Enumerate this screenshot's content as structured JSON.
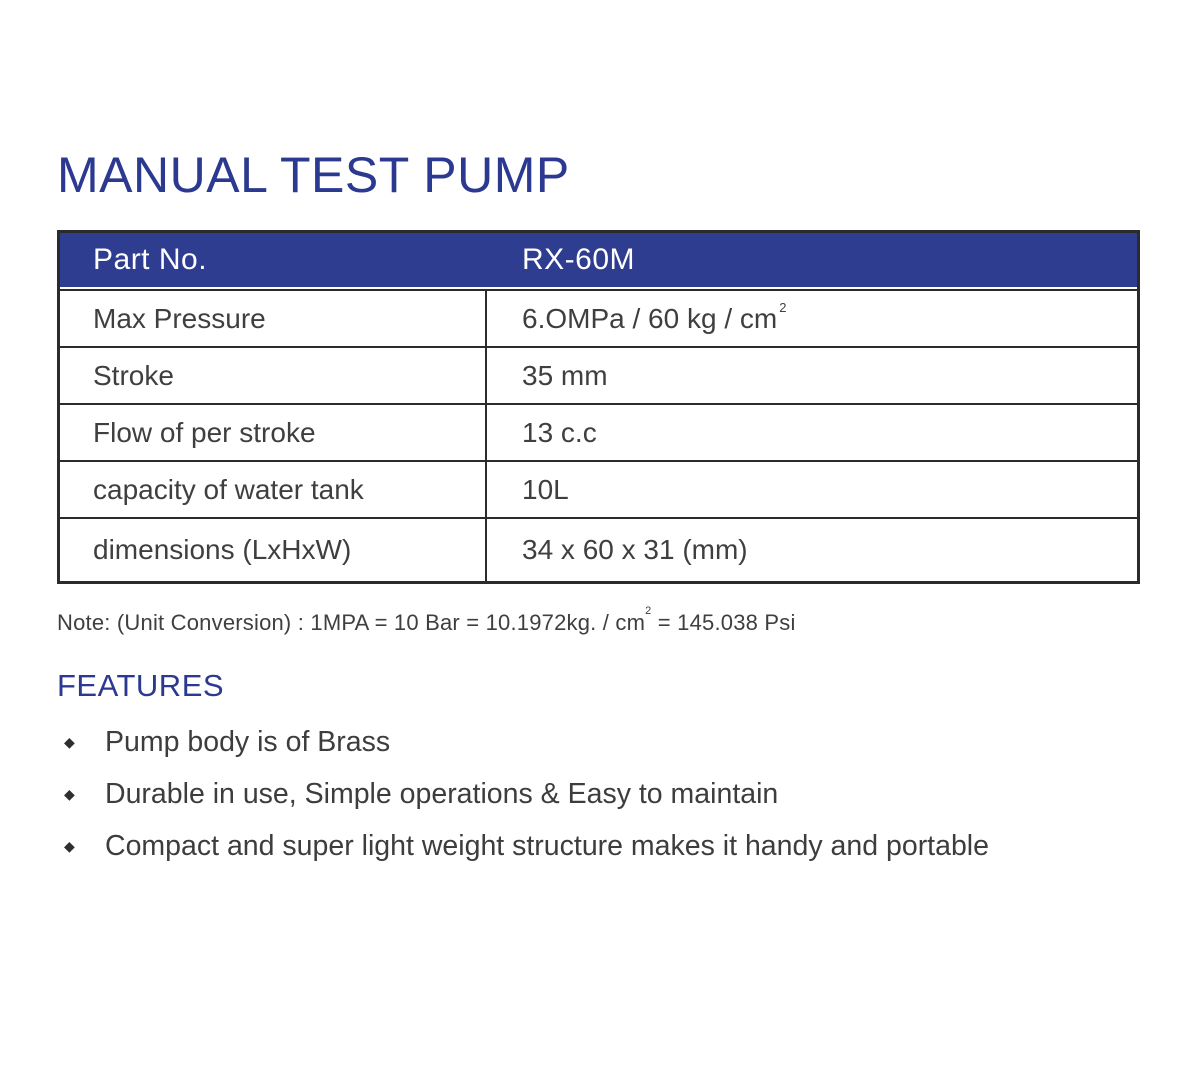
{
  "page": {
    "title": "MANUAL TEST PUMP"
  },
  "table": {
    "header": {
      "col1": "Part No.",
      "col2": "RX-60M"
    },
    "rows": [
      {
        "label": "Max Pressure",
        "value": "6.OMPa / 60 kg / cm",
        "value_sup": "2"
      },
      {
        "label": "Stroke",
        "value": "35 mm"
      },
      {
        "label": "Flow of per stroke",
        "value": "13 c.c"
      },
      {
        "label": "capacity of water tank",
        "value": "10L"
      },
      {
        "label": "dimensions (LxHxW)",
        "value": "34 x 60 x 31 (mm)"
      }
    ]
  },
  "note": {
    "prefix": "Note: (Unit Conversion) : 1MPA = 10 Bar = 10.1972kg. / cm",
    "sup": "2",
    "suffix": " = 145.038 Psi"
  },
  "features": {
    "heading": "FEATURES",
    "bullet_glyph": "◆",
    "items": [
      "Pump body is of Brass",
      "Durable in use, Simple operations & Easy to maintain",
      "Compact and super light weight structure makes it handy and portable"
    ]
  },
  "colors": {
    "accent_blue": "#2b3990",
    "header_bar_blue": "#2e3d90",
    "text_dark": "#3f3f3f",
    "border_dark": "#2b2b2b"
  }
}
